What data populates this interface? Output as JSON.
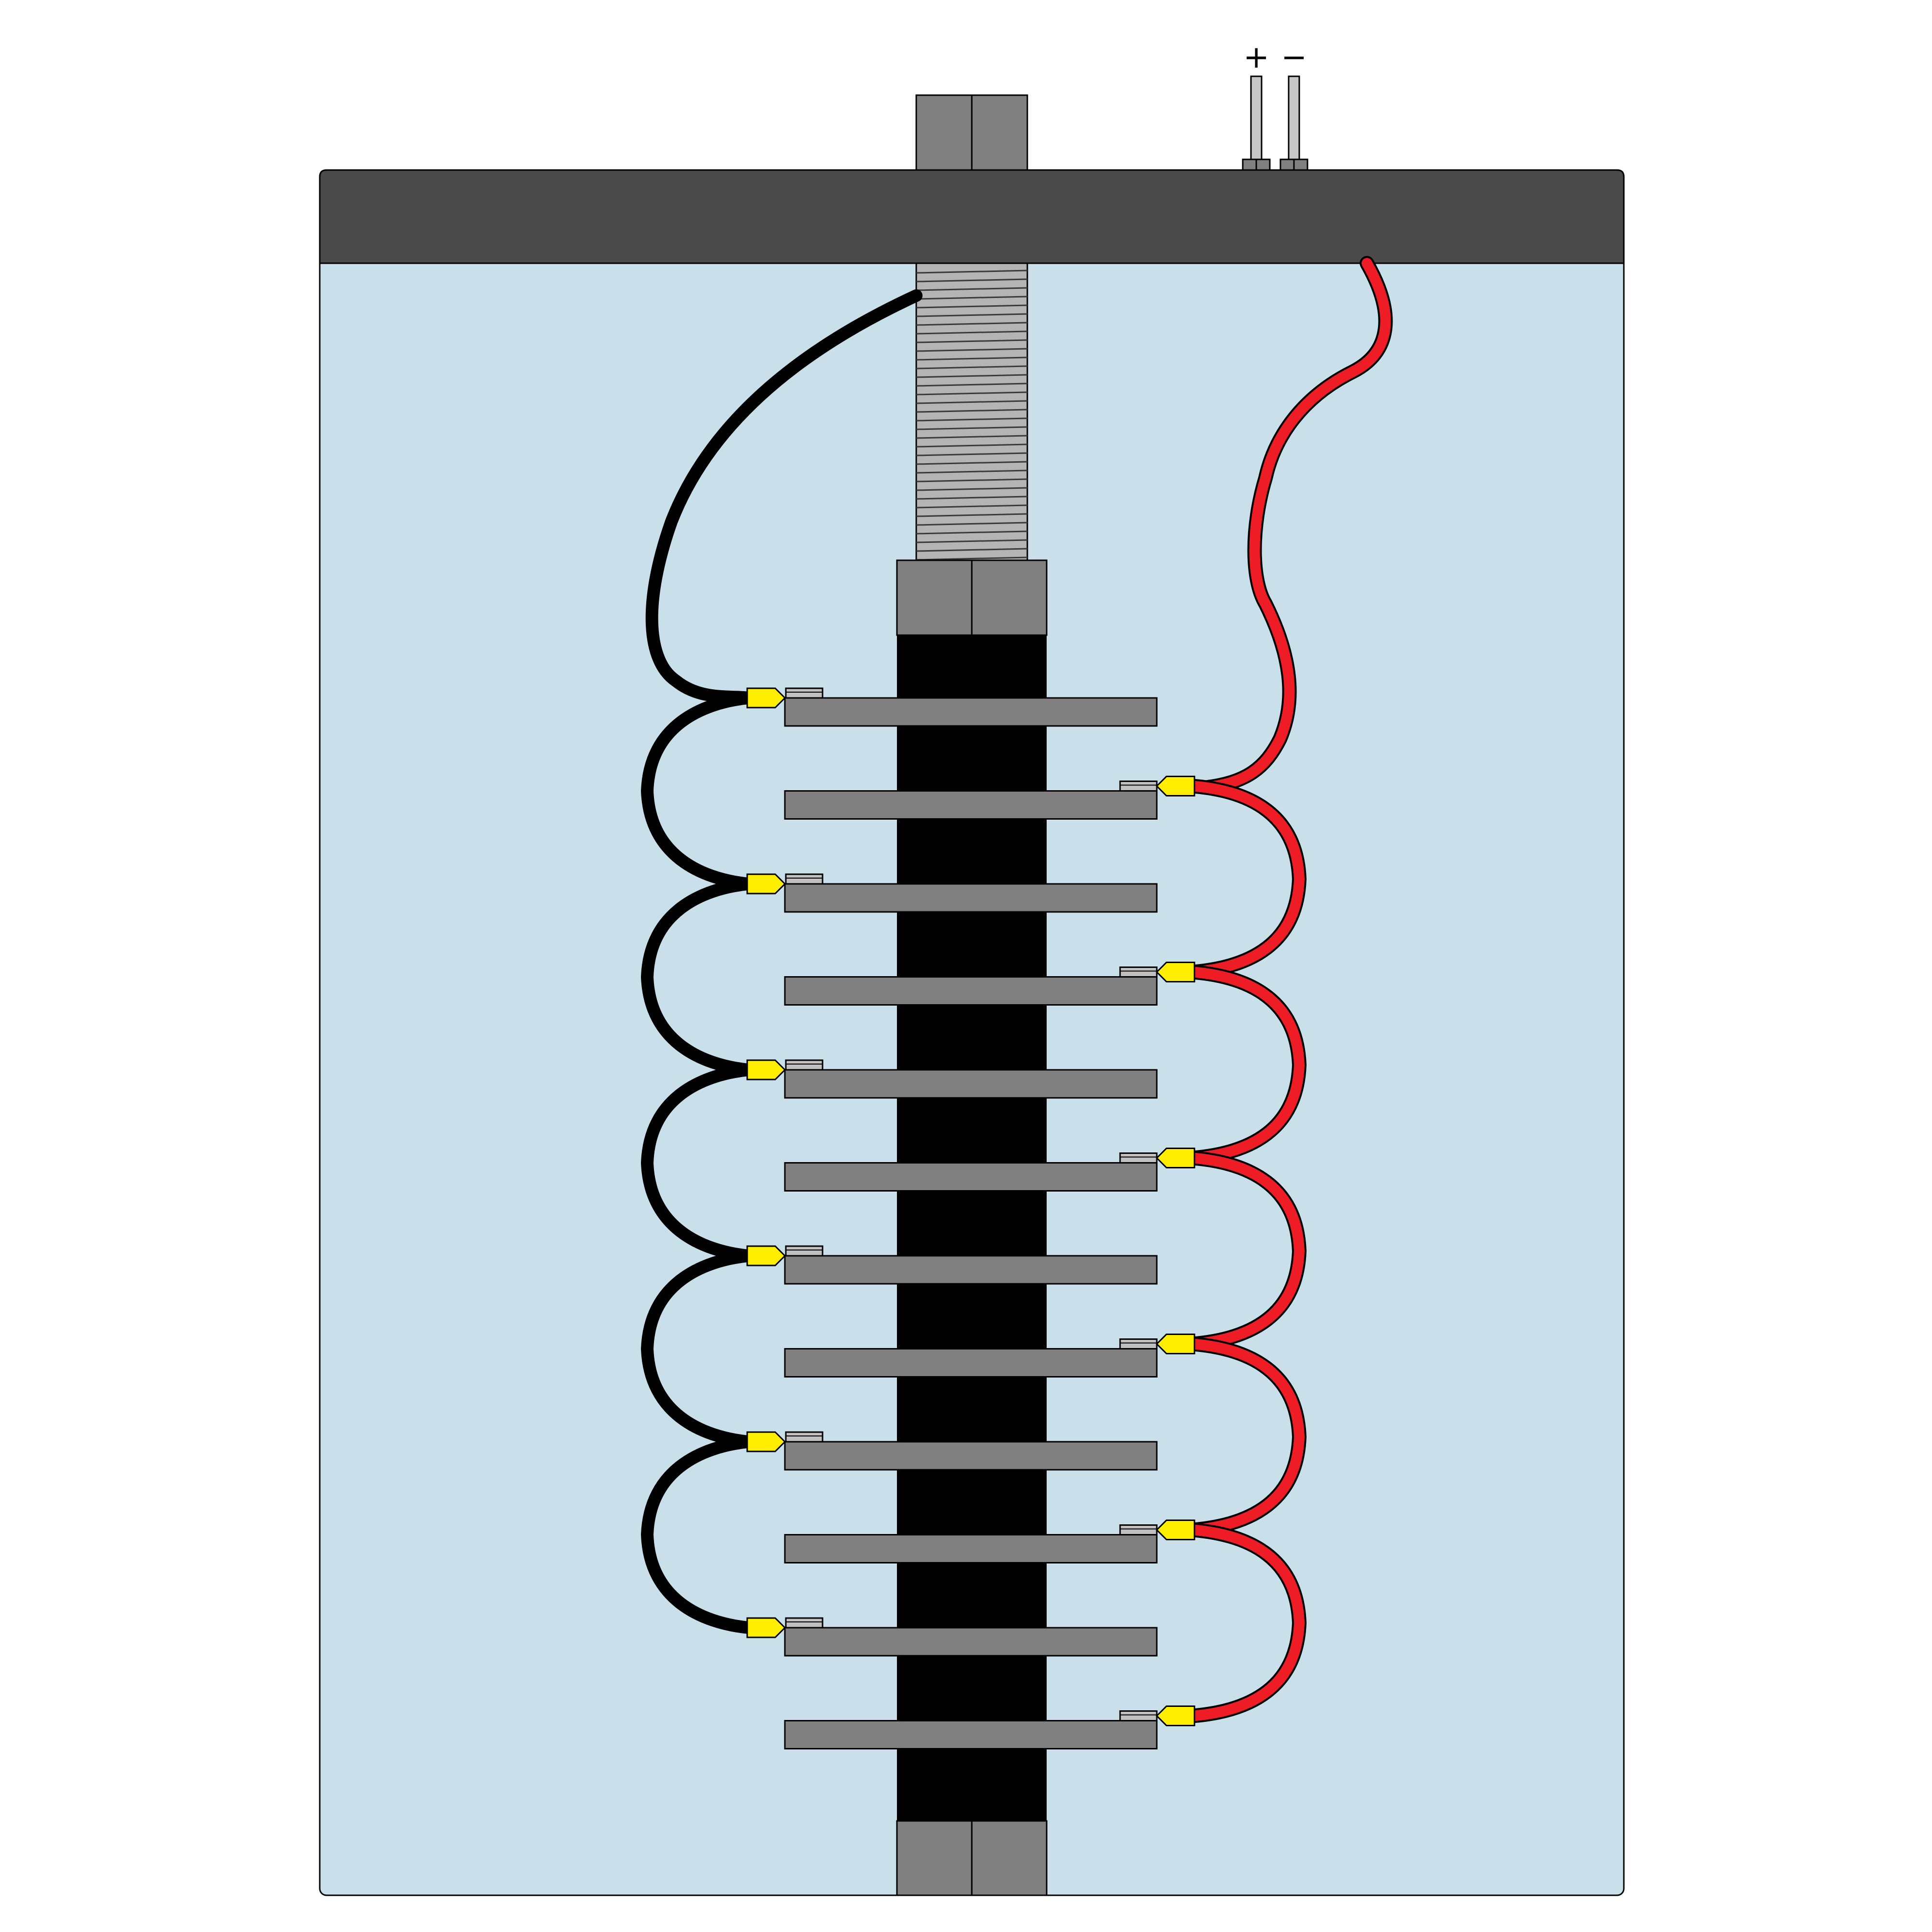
{
  "terminals": {
    "positive_label": "+",
    "negative_label": "−"
  },
  "plates": {
    "count": 12,
    "negative_side_tab_plates": [
      1,
      3,
      5,
      7,
      9,
      11
    ],
    "positive_side_tab_plates": [
      2,
      4,
      6,
      8,
      10,
      12
    ]
  },
  "colors": {
    "background": "#ffffff",
    "tank_fill": "#c9e0ea",
    "lid": "#4a4a4a",
    "rod_block": "#808080",
    "rod_thread": "#b4b4b4",
    "core": "#000000",
    "plate": "#808080",
    "tab": "#c0c0c0",
    "connector": "#ffee00",
    "negative_wire": "#000000",
    "positive_wire": "#ee1c25",
    "terminal_pin": "#c8c8c8"
  }
}
